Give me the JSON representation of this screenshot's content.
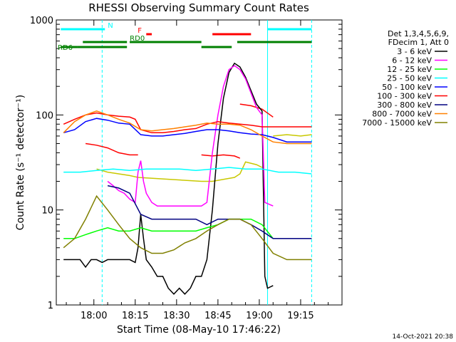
{
  "chart_data": {
    "type": "line",
    "title": "RHESSI Observing Summary Count Rates",
    "xlabel": "Start Time (08-May-10 17:46:22)",
    "ylabel": "Count Rate (s⁻¹ detector⁻¹)",
    "y_scale": "log",
    "ylim": [
      1,
      1000
    ],
    "xlim": [
      "17:46:22",
      "19:30:00"
    ],
    "x_ticks": [
      "18:00",
      "18:15",
      "18:30",
      "18:45",
      "19:00",
      "19:15"
    ],
    "y_ticks": [
      "1",
      "10",
      "100",
      "1000"
    ],
    "grid": false,
    "legend_position": "right",
    "legend_header": [
      "Det 1,3,4,5,6,9,",
      "FDecim 1, Att 0"
    ],
    "series": [
      {
        "name": "3 - 6 keV",
        "color": "#000000",
        "points": [
          [
            "17:49",
            3
          ],
          [
            "17:51",
            3
          ],
          [
            "17:53",
            3
          ],
          [
            "17:55",
            3
          ],
          [
            "17:57",
            2.5
          ],
          [
            "17:59",
            3
          ],
          [
            "18:01",
            3
          ],
          [
            "18:03",
            2.8
          ],
          [
            "18:05",
            3
          ],
          [
            "18:07",
            3
          ],
          [
            "18:09",
            3
          ],
          [
            "18:11",
            3
          ],
          [
            "18:13",
            3
          ],
          [
            "18:15",
            2.8
          ],
          [
            "18:16",
            4
          ],
          [
            "18:17",
            9
          ],
          [
            "18:18",
            5
          ],
          [
            "18:19",
            3
          ],
          [
            "18:21",
            2.5
          ],
          [
            "18:23",
            2
          ],
          [
            "18:25",
            2
          ],
          [
            "18:27",
            1.5
          ],
          [
            "18:29",
            1.3
          ],
          [
            "18:31",
            1.5
          ],
          [
            "18:33",
            1.3
          ],
          [
            "18:35",
            1.5
          ],
          [
            "18:37",
            2
          ],
          [
            "18:39",
            2
          ],
          [
            "18:41",
            3
          ],
          [
            "18:43",
            10
          ],
          [
            "18:45",
            50
          ],
          [
            "18:47",
            150
          ],
          [
            "18:49",
            280
          ],
          [
            "18:51",
            350
          ],
          [
            "18:53",
            320
          ],
          [
            "18:55",
            250
          ],
          [
            "18:57",
            180
          ],
          [
            "18:59",
            130
          ],
          [
            "19:01",
            110
          ],
          [
            "19:02",
            2
          ],
          [
            "19:03",
            1.5
          ],
          [
            "19:05",
            1.6
          ]
        ]
      },
      {
        "name": "6 - 12 keV",
        "color": "#ff00ff",
        "points": [
          [
            "18:05",
            20
          ],
          [
            "18:07",
            18
          ],
          [
            "18:09",
            16
          ],
          [
            "18:11",
            15
          ],
          [
            "18:13",
            13
          ],
          [
            "18:15",
            12
          ],
          [
            "18:16",
            25
          ],
          [
            "18:17",
            33
          ],
          [
            "18:18",
            20
          ],
          [
            "18:19",
            15
          ],
          [
            "18:21",
            12
          ],
          [
            "18:23",
            11
          ],
          [
            "18:25",
            11
          ],
          [
            "18:27",
            11
          ],
          [
            "18:29",
            11
          ],
          [
            "18:31",
            11
          ],
          [
            "18:33",
            11
          ],
          [
            "18:35",
            11
          ],
          [
            "18:37",
            11
          ],
          [
            "18:39",
            11
          ],
          [
            "18:41",
            12
          ],
          [
            "18:43",
            40
          ],
          [
            "18:45",
            100
          ],
          [
            "18:47",
            200
          ],
          [
            "18:49",
            300
          ],
          [
            "18:51",
            330
          ],
          [
            "18:53",
            300
          ],
          [
            "18:55",
            240
          ],
          [
            "18:57",
            170
          ],
          [
            "18:59",
            120
          ],
          [
            "19:01",
            100
          ],
          [
            "19:02",
            12
          ],
          [
            "19:05",
            11
          ]
        ]
      },
      {
        "name": "12 - 25 keV",
        "color": "#00ff00",
        "points": [
          [
            "17:49",
            5
          ],
          [
            "17:53",
            5
          ],
          [
            "17:57",
            5.5
          ],
          [
            "18:01",
            6
          ],
          [
            "18:05",
            6.5
          ],
          [
            "18:09",
            6
          ],
          [
            "18:13",
            6
          ],
          [
            "18:17",
            6.5
          ],
          [
            "18:21",
            6
          ],
          [
            "18:25",
            6
          ],
          [
            "18:29",
            6
          ],
          [
            "18:33",
            6
          ],
          [
            "18:37",
            6
          ],
          [
            "18:41",
            6.5
          ],
          [
            "18:45",
            7
          ],
          [
            "18:49",
            8
          ],
          [
            "18:53",
            8
          ],
          [
            "18:57",
            8
          ],
          [
            "19:01",
            7
          ],
          [
            "19:05",
            5
          ],
          [
            "19:10",
            5
          ],
          [
            "19:15",
            5
          ],
          [
            "19:19",
            5
          ]
        ]
      },
      {
        "name": "25 - 50 keV",
        "color": "#00ffff",
        "points": [
          [
            "17:49",
            25
          ],
          [
            "17:55",
            25
          ],
          [
            "18:01",
            26
          ],
          [
            "18:07",
            27
          ],
          [
            "18:13",
            26
          ],
          [
            "18:19",
            27
          ],
          [
            "18:25",
            27
          ],
          [
            "18:31",
            27
          ],
          [
            "18:37",
            26
          ],
          [
            "18:43",
            27
          ],
          [
            "18:49",
            28
          ],
          [
            "18:55",
            27
          ],
          [
            "19:01",
            27
          ],
          [
            "19:07",
            25
          ],
          [
            "19:13",
            25
          ],
          [
            "19:19",
            24
          ]
        ]
      },
      {
        "name": "50 - 100 keV",
        "color": "#0000ff",
        "points": [
          [
            "17:49",
            65
          ],
          [
            "17:53",
            70
          ],
          [
            "17:57",
            85
          ],
          [
            "18:01",
            92
          ],
          [
            "18:05",
            88
          ],
          [
            "18:09",
            82
          ],
          [
            "18:13",
            80
          ],
          [
            "18:17",
            62
          ],
          [
            "18:21",
            60
          ],
          [
            "18:25",
            60
          ],
          [
            "18:29",
            62
          ],
          [
            "18:33",
            64
          ],
          [
            "18:37",
            67
          ],
          [
            "18:41",
            70
          ],
          [
            "18:45",
            70
          ],
          [
            "18:49",
            68
          ],
          [
            "18:53",
            65
          ],
          [
            "18:57",
            63
          ],
          [
            "19:01",
            62
          ],
          [
            "19:05",
            58
          ],
          [
            "19:10",
            52
          ],
          [
            "19:15",
            52
          ],
          [
            "19:19",
            52
          ]
        ]
      },
      {
        "name": "100 - 300 keV",
        "color": "#ff0000",
        "points": [
          [
            "17:49",
            80
          ],
          [
            "17:53",
            90
          ],
          [
            "17:57",
            100
          ],
          [
            "18:01",
            105
          ],
          [
            "18:05",
            100
          ],
          [
            "18:09",
            97
          ],
          [
            "18:13",
            95
          ],
          [
            "18:15",
            90
          ],
          [
            "18:17",
            70
          ],
          [
            "18:21",
            65
          ],
          [
            "18:25",
            65
          ],
          [
            "18:29",
            67
          ],
          [
            "18:33",
            70
          ],
          [
            "18:37",
            72
          ],
          [
            "18:41",
            80
          ],
          [
            "18:45",
            85
          ],
          [
            "18:49",
            82
          ],
          [
            "18:53",
            80
          ],
          [
            "18:57",
            78
          ],
          [
            "19:01",
            75
          ],
          [
            "19:05",
            75
          ],
          [
            "19:10",
            75
          ],
          [
            "19:15",
            75
          ],
          [
            "19:19",
            75
          ]
        ]
      },
      {
        "name": "300 - 800 keV",
        "color": "#000080",
        "points": [
          [
            "18:05",
            18
          ],
          [
            "18:09",
            17
          ],
          [
            "18:13",
            15
          ],
          [
            "18:17",
            9
          ],
          [
            "18:21",
            8
          ],
          [
            "18:25",
            8
          ],
          [
            "18:29",
            8
          ],
          [
            "18:33",
            8
          ],
          [
            "18:37",
            8
          ],
          [
            "18:41",
            7
          ],
          [
            "18:45",
            8
          ],
          [
            "18:49",
            8
          ],
          [
            "18:53",
            8
          ],
          [
            "18:57",
            7
          ],
          [
            "19:01",
            6
          ],
          [
            "19:05",
            5
          ],
          [
            "19:10",
            5
          ],
          [
            "19:15",
            5
          ],
          [
            "19:19",
            5
          ]
        ]
      },
      {
        "name": "800 - 7000 keV",
        "color": "#ff8000",
        "points": [
          [
            "17:49",
            65
          ],
          [
            "17:53",
            85
          ],
          [
            "17:57",
            100
          ],
          [
            "18:01",
            110
          ],
          [
            "18:05",
            100
          ],
          [
            "18:09",
            90
          ],
          [
            "18:13",
            82
          ],
          [
            "18:17",
            70
          ],
          [
            "18:21",
            68
          ],
          [
            "18:25",
            70
          ],
          [
            "18:29",
            72
          ],
          [
            "18:33",
            75
          ],
          [
            "18:37",
            78
          ],
          [
            "18:41",
            82
          ],
          [
            "18:45",
            80
          ],
          [
            "18:49",
            80
          ],
          [
            "18:53",
            78
          ],
          [
            "18:57",
            70
          ],
          [
            "19:01",
            60
          ],
          [
            "19:05",
            52
          ],
          [
            "19:10",
            50
          ],
          [
            "19:15",
            50
          ],
          [
            "19:19",
            50
          ]
        ]
      },
      {
        "name": "7000 - 15000 keV",
        "color": "#808000",
        "points": [
          [
            "17:49",
            4
          ],
          [
            "17:53",
            5
          ],
          [
            "17:57",
            8
          ],
          [
            "18:01",
            14
          ],
          [
            "18:05",
            10
          ],
          [
            "18:09",
            7
          ],
          [
            "18:13",
            5
          ],
          [
            "18:17",
            4
          ],
          [
            "18:21",
            3.5
          ],
          [
            "18:25",
            3.5
          ],
          [
            "18:29",
            3.8
          ],
          [
            "18:33",
            4.5
          ],
          [
            "18:37",
            5
          ],
          [
            "18:41",
            6
          ],
          [
            "18:45",
            7
          ],
          [
            "18:49",
            8
          ],
          [
            "18:53",
            8
          ],
          [
            "18:57",
            7
          ],
          [
            "19:01",
            5
          ],
          [
            "19:05",
            3.5
          ],
          [
            "19:10",
            3
          ],
          [
            "19:15",
            3
          ],
          [
            "19:19",
            3
          ]
        ]
      }
    ],
    "extra_red_levels": [
      {
        "segments": [
          [
            "17:57",
            50
          ],
          [
            "18:01",
            48
          ],
          [
            "18:05",
            45
          ],
          [
            "18:09",
            40
          ],
          [
            "18:13",
            38
          ],
          [
            "18:16",
            38
          ]
        ],
        "color": "#ff0000"
      },
      {
        "segments": [
          [
            "18:01",
            27
          ],
          [
            "18:05",
            25
          ],
          [
            "18:09",
            24
          ],
          [
            "18:13",
            23
          ],
          [
            "18:16",
            22
          ],
          [
            "18:39",
            20
          ],
          [
            "18:43",
            20
          ],
          [
            "18:47",
            21
          ],
          [
            "18:51",
            22
          ],
          [
            "18:53",
            24
          ],
          [
            "18:55",
            32
          ],
          [
            "18:59",
            30
          ],
          [
            "19:01",
            28
          ]
        ],
        "color": "#c8c800"
      },
      {
        "segments": [
          [
            "18:39",
            38
          ],
          [
            "18:43",
            37
          ],
          [
            "18:47",
            38
          ],
          [
            "18:51",
            37
          ],
          [
            "18:53",
            35
          ]
        ],
        "color": "#ff0000"
      },
      {
        "segments": [
          [
            "18:53",
            130
          ],
          [
            "18:57",
            125
          ],
          [
            "19:01",
            115
          ],
          [
            "19:05",
            95
          ]
        ],
        "color": "#ff0000"
      },
      {
        "segments": [
          [
            "19:05",
            60
          ],
          [
            "19:10",
            62
          ],
          [
            "19:15",
            60
          ],
          [
            "19:19",
            62
          ]
        ],
        "color": "#c8c800"
      }
    ],
    "flags": [
      {
        "label": "N",
        "color": "#00ffff",
        "spans": [
          [
            "17:48",
            "18:04"
          ],
          [
            "19:03",
            "19:19"
          ]
        ]
      },
      {
        "label": "F",
        "color": "#ff0000",
        "spans": [
          [
            "18:19",
            "18:21"
          ],
          [
            "18:43",
            "18:57"
          ]
        ]
      },
      {
        "label": "RD0",
        "color": "#008000",
        "spans": [
          [
            "17:56",
            "18:12"
          ],
          [
            "18:13",
            "18:39"
          ],
          [
            "18:52",
            "19:19"
          ]
        ]
      },
      {
        "label": "RD6",
        "color": "#008000",
        "spans": [
          [
            "17:48",
            "17:54"
          ],
          [
            "17:54",
            "18:12"
          ],
          [
            "18:39",
            "18:50"
          ]
        ]
      }
    ],
    "vertical_markers": [
      {
        "time": "18:03",
        "color": "#00ffff",
        "style": "dashed"
      },
      {
        "time": "19:03",
        "color": "#00ffff",
        "style": "solid"
      },
      {
        "time": "19:19",
        "color": "#00ffff",
        "style": "dashed"
      }
    ],
    "footer_date": "14-Oct-2021 20:38"
  }
}
